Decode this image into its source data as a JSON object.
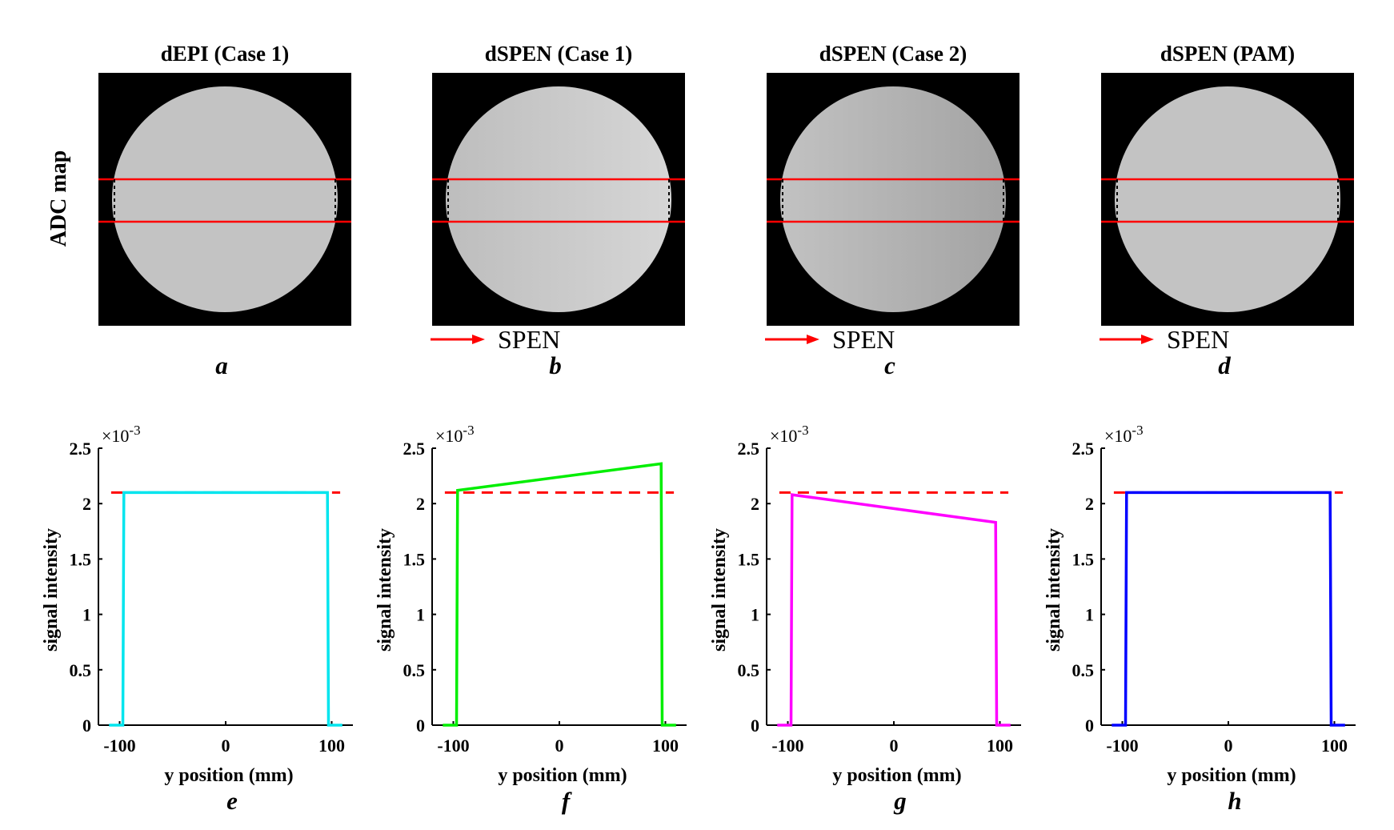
{
  "figure": {
    "row_label": "ADC map",
    "spen_label": "SPEN",
    "spen_arrow_color": "#ff0000",
    "line_color": "#ff0000",
    "reference_line_color": "#ff0000",
    "panels": [
      {
        "id": "a",
        "title": "dEPI (Case 1)",
        "letter": "a",
        "spen": false,
        "gradient": [
          "#c3c3c3",
          "#c3c3c3"
        ]
      },
      {
        "id": "b",
        "title": "dSPEN (Case 1)",
        "letter": "b",
        "spen": true,
        "gradient": [
          "#bdbdbd",
          "#d6d6d6"
        ]
      },
      {
        "id": "c",
        "title": "dSPEN (Case 2)",
        "letter": "c",
        "spen": true,
        "gradient": [
          "#c2c2c2",
          "#a3a3a3"
        ]
      },
      {
        "id": "d",
        "title": "dSPEN (PAM)",
        "letter": "d",
        "spen": true,
        "gradient": [
          "#c3c3c3",
          "#c3c3c3"
        ]
      }
    ]
  },
  "chart_data": [
    {
      "type": "line",
      "letter": "e",
      "color": "#00e5ee",
      "xlabel": "y position (mm)",
      "ylabel": "signal intensity",
      "scale_label": "×10",
      "scale_exponent": "-3",
      "xlim": [
        -120,
        120
      ],
      "ylim": [
        0,
        2.5
      ],
      "xticks": [
        -100,
        0,
        100
      ],
      "xtick_labels": [
        "-100",
        "0",
        "100"
      ],
      "yticks": [
        0,
        0.5,
        1,
        1.5,
        2,
        2.5
      ],
      "ytick_labels": [
        "0",
        "0.5",
        "1",
        "1.5",
        "2",
        "2.5"
      ],
      "reference": 2.1,
      "x": [
        -110,
        -97,
        -96,
        96,
        97,
        110
      ],
      "y": [
        0,
        0,
        2.1,
        2.1,
        0,
        0
      ]
    },
    {
      "type": "line",
      "letter": "f",
      "color": "#00ee00",
      "xlabel": "y position (mm)",
      "ylabel": "signal intensity",
      "scale_label": "×10",
      "scale_exponent": "-3",
      "xlim": [
        -120,
        120
      ],
      "ylim": [
        0,
        2.5
      ],
      "xticks": [
        -100,
        0,
        100
      ],
      "xtick_labels": [
        "-100",
        "0",
        "100"
      ],
      "yticks": [
        0,
        0.5,
        1,
        1.5,
        2,
        2.5
      ],
      "ytick_labels": [
        "0",
        "0.5",
        "1",
        "1.5",
        "2",
        "2.5"
      ],
      "reference": 2.1,
      "x": [
        -110,
        -97,
        -96,
        96,
        97,
        110
      ],
      "y": [
        0,
        0,
        2.12,
        2.36,
        0,
        0
      ]
    },
    {
      "type": "line",
      "letter": "g",
      "color": "#ff00ff",
      "xlabel": "y position (mm)",
      "ylabel": "signal intensity",
      "scale_label": "×10",
      "scale_exponent": "-3",
      "xlim": [
        -120,
        120
      ],
      "ylim": [
        0,
        2.5
      ],
      "xticks": [
        -100,
        0,
        100
      ],
      "xtick_labels": [
        "-100",
        "0",
        "100"
      ],
      "yticks": [
        0,
        0.5,
        1,
        1.5,
        2,
        2.5
      ],
      "ytick_labels": [
        "0",
        "0.5",
        "1",
        "1.5",
        "2",
        "2.5"
      ],
      "reference": 2.1,
      "x": [
        -110,
        -97,
        -96,
        96,
        97,
        110
      ],
      "y": [
        0,
        0,
        2.08,
        1.83,
        0,
        0
      ]
    },
    {
      "type": "line",
      "letter": "h",
      "color": "#0000ff",
      "xlabel": "y position (mm)",
      "ylabel": "signal intensity",
      "scale_label": "×10",
      "scale_exponent": "-3",
      "xlim": [
        -120,
        120
      ],
      "ylim": [
        0,
        2.5
      ],
      "xticks": [
        -100,
        0,
        100
      ],
      "xtick_labels": [
        "-100",
        "0",
        "100"
      ],
      "yticks": [
        0,
        0.5,
        1,
        1.5,
        2,
        2.5
      ],
      "ytick_labels": [
        "0",
        "0.5",
        "1",
        "1.5",
        "2",
        "2.5"
      ],
      "reference": 2.1,
      "x": [
        -110,
        -97,
        -96,
        96,
        97,
        110
      ],
      "y": [
        0,
        0,
        2.1,
        2.1,
        0,
        0
      ]
    }
  ]
}
